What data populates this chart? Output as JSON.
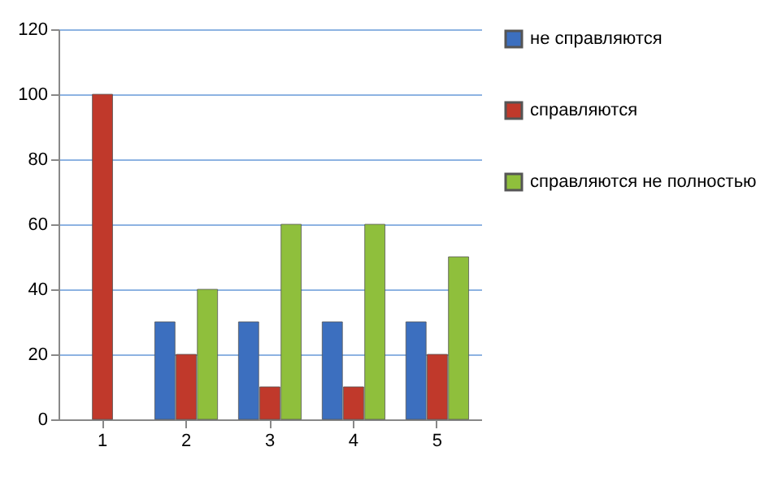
{
  "chart_data": {
    "type": "bar",
    "categories": [
      "1",
      "2",
      "3",
      "4",
      "5"
    ],
    "series": [
      {
        "name": "не справляются",
        "color": "#3c6fbf",
        "values": [
          null,
          30,
          30,
          30,
          30
        ]
      },
      {
        "name": "справляются",
        "color": "#c0392b",
        "values": [
          100,
          20,
          10,
          10,
          20
        ]
      },
      {
        "name": "справляются  не полностью",
        "color": "#8fbf3c",
        "values": [
          null,
          40,
          60,
          60,
          50
        ]
      }
    ],
    "ylim": [
      0,
      120
    ],
    "yticks": [
      0,
      20,
      40,
      60,
      80,
      100,
      120
    ],
    "grid": "y",
    "legend": "right"
  }
}
